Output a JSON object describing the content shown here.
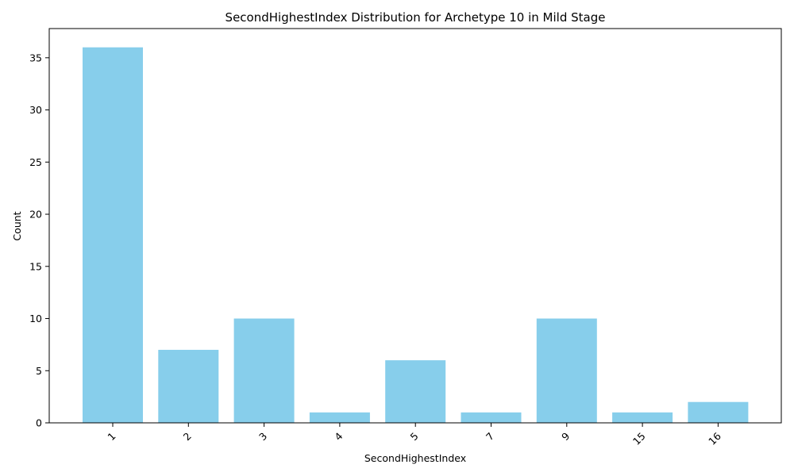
{
  "chart_data": {
    "type": "bar",
    "title": "SecondHighestIndex Distribution for Archetype 10 in Mild Stage",
    "xlabel": "SecondHighestIndex",
    "ylabel": "Count",
    "categories": [
      "1",
      "2",
      "3",
      "4",
      "5",
      "7",
      "9",
      "15",
      "16"
    ],
    "values": [
      36,
      7,
      10,
      1,
      6,
      1,
      10,
      1,
      2
    ],
    "ylim": [
      0,
      37.8
    ],
    "yticks": [
      "0",
      "5",
      "10",
      "15",
      "20",
      "25",
      "30",
      "35"
    ],
    "bar_color": "#87ceeb",
    "grid": false,
    "legend": "none",
    "x_tick_rotation": "45"
  }
}
